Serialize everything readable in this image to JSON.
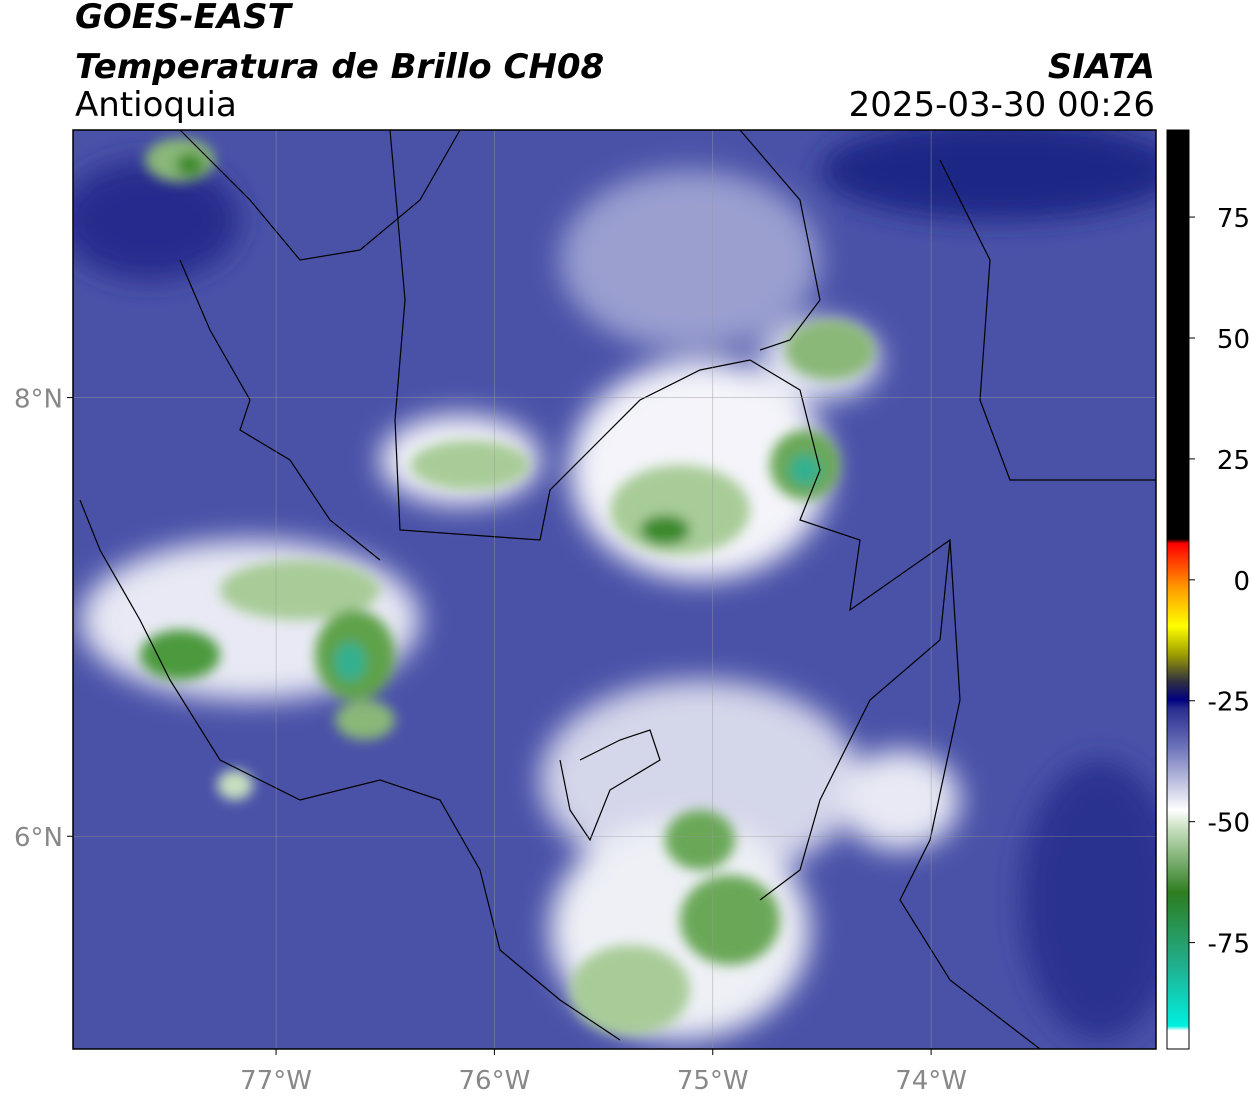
{
  "header": {
    "title": "GOES-EAST",
    "subtitle": "Temperatura de Brillo CH08",
    "region": "Antioquia",
    "source": "SIATA",
    "timestamp": "2025-03-30 00:26"
  },
  "map": {
    "lonlim": [
      -77.93,
      -72.97
    ],
    "latlim": [
      5.03,
      9.22
    ],
    "xticks": [
      {
        "value": -77,
        "label": "77°W"
      },
      {
        "value": -76,
        "label": "76°W"
      },
      {
        "value": -75,
        "label": "75°W"
      },
      {
        "value": -74,
        "label": "74°W"
      }
    ],
    "yticks": [
      {
        "value": 8,
        "label": "8°N"
      },
      {
        "value": 6,
        "label": "6°N"
      }
    ],
    "grid": true
  },
  "colorbar": {
    "lim": [
      -97,
      93
    ],
    "ticks": [
      75,
      50,
      25,
      0,
      -25,
      -50,
      -75
    ]
  }
}
